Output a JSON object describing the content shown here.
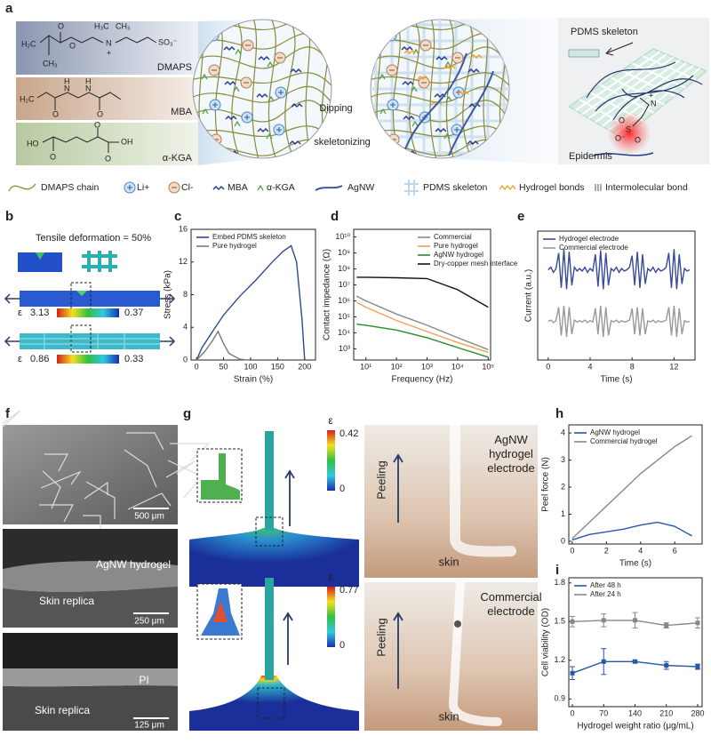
{
  "panel_labels": [
    "a",
    "b",
    "c",
    "d",
    "e",
    "f",
    "g",
    "h",
    "i"
  ],
  "panel_a": {
    "molecules": [
      {
        "name": "DMAPS",
        "atoms": [
          "H₂C",
          "CH₃",
          "O",
          "O",
          "H₃C",
          "CH₃",
          "N",
          "+",
          "SO₃⁻"
        ]
      },
      {
        "name": "MBA",
        "atoms": [
          "H₂C",
          "O",
          "N",
          "H",
          "N",
          "H",
          "O"
        ]
      },
      {
        "name": "α-KGA",
        "atoms": [
          "HO",
          "O",
          "O",
          "O",
          "OH"
        ]
      }
    ],
    "steps": [
      "Dipping",
      "skeletonizing"
    ],
    "skeleton_label": "PDMS skeleton",
    "skin_label": "Epidermis",
    "zwitterion_atoms": [
      "N",
      "+",
      "S",
      "O",
      "O",
      "O⁻"
    ],
    "legend": [
      "DMAPS chain",
      "Li+",
      "Cl-",
      "MBA",
      "α-KGA",
      "AgNW",
      "PDMS skeleton",
      "Hydrogel bonds",
      "Intermolecular bond"
    ]
  },
  "panel_b": {
    "title": "Tensile deformation = 50%",
    "colorbars": [
      {
        "symbol": "ε",
        "max": 3.13,
        "min": 0.37
      },
      {
        "symbol": "ε",
        "max": 0.86,
        "min": 0.33
      }
    ]
  },
  "panel_f": {
    "images": [
      {
        "scale_bar": "500 μm"
      },
      {
        "scale_bar": "250 μm",
        "labels": [
          "AgNW hydrogel",
          "Skin replica"
        ]
      },
      {
        "scale_bar": "125 μm",
        "labels": [
          "PI",
          "Skin replica"
        ]
      }
    ]
  },
  "panel_g": {
    "simulations": [
      {
        "symbol": "ε",
        "max": 0.42,
        "min": 0
      },
      {
        "symbol": "ε",
        "max": 0.77,
        "min": 0
      }
    ],
    "photos": [
      {
        "action": "Peeling",
        "electrode": "AgNW hydrogel electrode",
        "surface": "skin"
      },
      {
        "action": "Peeling",
        "electrode": "Commercial electrode",
        "surface": "skin"
      }
    ]
  },
  "chart_data": [
    {
      "type": "line",
      "x_label": "Strain (%)",
      "y_label": "Stress (kPa)",
      "xlim": [
        -10,
        220
      ],
      "ylim": [
        0,
        16
      ],
      "xticks": [
        0,
        50,
        100,
        150,
        200
      ],
      "yticks": [
        0,
        4,
        8,
        12,
        16
      ],
      "legend": "upper left",
      "series": [
        {
          "name": "Embed PDMS skeleton",
          "color": "#2e4a8a",
          "x": [
            0,
            10,
            30,
            50,
            80,
            110,
            140,
            160,
            175,
            185,
            195,
            200
          ],
          "values": [
            0,
            1.5,
            3.5,
            5.5,
            7.8,
            9.8,
            12,
            13.3,
            14,
            12,
            5,
            0
          ]
        },
        {
          "name": "Pure hydrogel",
          "color": "#777777",
          "x": [
            0,
            15,
            30,
            40,
            50,
            60,
            80,
            95
          ],
          "values": [
            0,
            1,
            2.4,
            3.5,
            2,
            0.8,
            0.1,
            0
          ]
        }
      ]
    },
    {
      "type": "line",
      "x_label": "Frequency (Hz)",
      "y_label": "Contact impedance (Ω)",
      "xscale": "log",
      "yscale": "log",
      "xlim": [
        4,
        120000
      ],
      "ylim": [
        200,
        30000000000
      ],
      "xticks": [
        {
          "value": 10,
          "label": "10¹"
        },
        {
          "value": 100,
          "label": "10²"
        },
        {
          "value": 1000,
          "label": "10³"
        },
        {
          "value": 10000,
          "label": "10⁴"
        },
        {
          "value": 100000,
          "label": "10⁵"
        }
      ],
      "yticks": [
        {
          "value": 1000,
          "label": "10³"
        },
        {
          "value": 10000,
          "label": "10⁴"
        },
        {
          "value": 100000,
          "label": "10⁵"
        },
        {
          "value": 1000000,
          "label": "10⁶"
        },
        {
          "value": 10000000,
          "label": "10⁷"
        },
        {
          "value": 100000000,
          "label": "10⁸"
        },
        {
          "value": 1000000000,
          "label": "10⁹"
        },
        {
          "value": 10000000000,
          "label": "10¹⁰"
        }
      ],
      "legend": "upper right",
      "x": [
        5,
        10,
        100,
        1000,
        10000,
        100000
      ],
      "series": [
        {
          "name": "Commercial",
          "color": "#888888",
          "values": [
            2000000,
            1000000,
            150000,
            30000,
            5000,
            900
          ]
        },
        {
          "name": "Pure hydrogel",
          "color": "#f0a050",
          "values": [
            800000,
            400000,
            60000,
            12000,
            2500,
            600
          ]
        },
        {
          "name": "AgNW hydrogel",
          "color": "#2a8a2a",
          "values": [
            35000,
            30000,
            15000,
            5000,
            1200,
            300
          ]
        },
        {
          "name": "Dry-copper mesh interface",
          "color": "#111111",
          "values": [
            30000000,
            30000000,
            28000000,
            25000000,
            5000000,
            400000
          ]
        }
      ]
    },
    {
      "type": "line",
      "x_label": "Time (s)",
      "y_label": "Current (a.u.)",
      "xlim": [
        -1,
        14
      ],
      "ylim": [
        0,
        10
      ],
      "xticks": [
        0,
        4,
        8,
        12
      ],
      "legend": "upper left",
      "x": [
        0,
        0.25,
        0.5,
        0.75,
        1,
        1.25,
        1.5,
        1.75,
        2,
        2.25,
        2.5,
        2.75,
        3,
        3.25,
        3.5,
        3.75,
        4,
        4.25,
        4.5,
        4.75,
        5,
        5.25,
        5.5,
        5.75,
        6,
        6.25,
        6.5,
        6.75,
        7,
        7.25,
        7.5,
        7.75,
        8,
        8.25,
        8.5,
        8.75,
        9,
        9.25,
        9.5,
        9.75,
        10,
        10.25,
        10.5,
        10.75,
        11,
        11.25,
        11.5,
        11.75,
        12,
        12.25,
        12.5,
        12.75,
        13,
        13.25,
        13.5
      ],
      "series": [
        {
          "name": "Hydrogel electrode",
          "color": "#3a4a9a",
          "values": [
            7,
            7.2,
            6.8,
            7.1,
            8.3,
            5.6,
            8.6,
            5.5,
            8.4,
            5.8,
            7.2,
            6.9,
            7.1,
            6.9,
            7.2,
            6.8,
            7.1,
            6.9,
            8.2,
            5.7,
            8.5,
            5.5,
            8.3,
            5.8,
            7.1,
            6.9,
            7.2,
            6.8,
            7.1,
            6.9,
            7,
            7.2,
            8.1,
            5.8,
            8.4,
            5.6,
            8.2,
            5.9,
            7.1,
            6.9,
            7.2,
            6.8,
            7.1,
            6.9,
            7,
            7.2,
            8.3,
            5.6,
            8.6,
            5.5,
            8.2,
            5.9,
            7.1,
            6.9,
            7
          ]
        },
        {
          "name": "Commercial electrode",
          "color": "#999999",
          "values": [
            3,
            3.1,
            2.9,
            3.05,
            4.1,
            1.9,
            4.2,
            1.8,
            4.1,
            2,
            3.1,
            2.95,
            3.05,
            2.95,
            3.1,
            2.9,
            3.05,
            2.95,
            4,
            2,
            4.2,
            1.8,
            4.1,
            1.9,
            3.05,
            2.95,
            3.1,
            2.9,
            3.05,
            2.95,
            3,
            3.1,
            4,
            2,
            4.1,
            1.9,
            4,
            2,
            3.05,
            2.95,
            3.1,
            2.9,
            3.05,
            2.95,
            3,
            3.1,
            4.1,
            1.9,
            4.2,
            1.8,
            4,
            2,
            3.05,
            2.95,
            3
          ]
        }
      ]
    },
    {
      "type": "line",
      "x_label": "Time (s)",
      "y_label": "Peel force (N)",
      "xlim": [
        -0.2,
        7.6
      ],
      "ylim": [
        -0.1,
        4.3
      ],
      "xticks": [
        0,
        2,
        4,
        6
      ],
      "yticks": [
        0,
        1,
        2,
        3,
        4
      ],
      "legend": "upper left",
      "x": [
        0,
        1,
        2,
        3,
        4,
        5,
        6,
        7
      ],
      "series": [
        {
          "name": "AgNW hydrogel",
          "color": "#2458a8",
          "values": [
            0.05,
            0.25,
            0.35,
            0.45,
            0.6,
            0.7,
            0.55,
            0.2
          ]
        },
        {
          "name": "Commercial hydrogel",
          "color": "#888888",
          "values": [
            0.1,
            0.7,
            1.3,
            1.9,
            2.5,
            3,
            3.5,
            3.9
          ]
        }
      ]
    },
    {
      "type": "line",
      "x_label": "Hydrogel weight ratio (μg/mL)",
      "y_label": "Cell viability (OD)",
      "xlim": [
        -8,
        290
      ],
      "ylim": [
        0.84,
        1.84
      ],
      "xticks": [
        0,
        70,
        140,
        210,
        280
      ],
      "yticks": [
        0.9,
        1.2,
        1.5,
        1.8
      ],
      "legend": "upper left",
      "markers": true,
      "x": [
        0,
        70,
        140,
        210,
        280
      ],
      "series": [
        {
          "name": "After 48 h",
          "color": "#2458a8",
          "values": [
            1.1,
            1.19,
            1.19,
            1.16,
            1.15
          ],
          "errors": [
            0.05,
            0.1,
            0.01,
            0.03,
            0.02
          ]
        },
        {
          "name": "After 24 h",
          "color": "#888888",
          "values": [
            1.5,
            1.51,
            1.51,
            1.47,
            1.49
          ],
          "errors": [
            0.04,
            0.05,
            0.06,
            0.02,
            0.04
          ]
        }
      ]
    }
  ]
}
